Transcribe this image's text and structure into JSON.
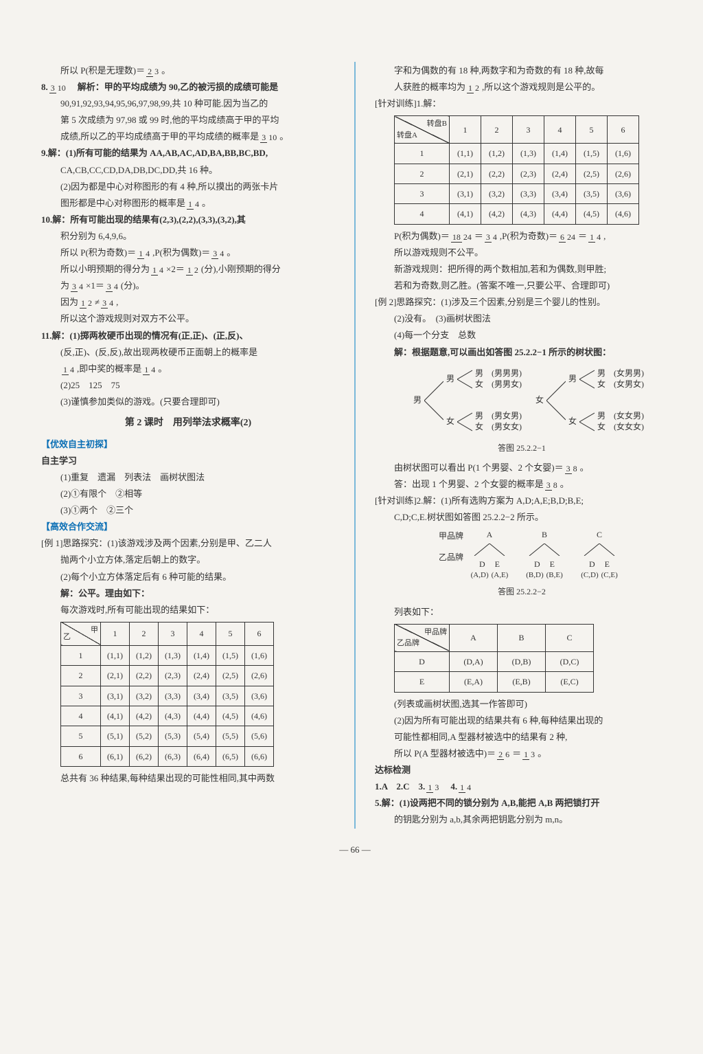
{
  "left": {
    "p1_pre": "所以 P(积是无理数)＝",
    "p1_num": "2",
    "p1_den": "3",
    "p1_post": "。",
    "q8_label": "8.",
    "q8_num": "3",
    "q8_den": "10",
    "q8_a": "解析：甲的平均成绩为 90,乙的被污损的成绩可能是",
    "q8_b": "90,91,92,93,94,95,96,97,98,99,共 10 种可能.因为当乙的",
    "q8_c": "第 5 次成绩为 97,98 或 99 时,他的平均成绩高于甲的平均",
    "q8_d_pre": "成绩,所以乙的平均成绩高于甲的平均成绩的概率是",
    "q8_d_num": "3",
    "q8_d_den": "10",
    "q8_d_post": "。",
    "q9_a": "9.解：(1)所有可能的结果为 AA,AB,AC,AD,BA,BB,BC,BD,",
    "q9_b": "CA,CB,CC,CD,DA,DB,DC,DD,共 16 种。",
    "q9_c": "(2)因为都是中心对称图形的有 4 种,所以摸出的两张卡片",
    "q9_d_pre": "图形都是中心对称图形的概率是",
    "q9_d_num": "1",
    "q9_d_den": "4",
    "q9_d_post": "。",
    "q10_a": "10.解：所有可能出现的结果有(2,3),(2,2),(3,3),(3,2),其",
    "q10_b": "积分别为 6,4,9,6。",
    "q10_c_pre": "所以 P(积为奇数)＝",
    "q10_c_n1": "1",
    "q10_c_d1": "4",
    "q10_c_mid": ",P(积为偶数)＝",
    "q10_c_n2": "3",
    "q10_c_d2": "4",
    "q10_c_post": "。",
    "q10_d_pre": "所以小明预期的得分为",
    "q10_d_n1": "1",
    "q10_d_d1": "4",
    "q10_d_mid1": "×2＝",
    "q10_d_n2": "1",
    "q10_d_d2": "2",
    "q10_d_mid2": "(分),小刚预期的得分",
    "q10_e_pre": "为",
    "q10_e_n1": "3",
    "q10_e_d1": "4",
    "q10_e_mid": "×1＝",
    "q10_e_n2": "3",
    "q10_e_d2": "4",
    "q10_e_post": "(分)。",
    "q10_f_pre": "因为",
    "q10_f_n1": "1",
    "q10_f_d1": "2",
    "q10_f_mid": "≠",
    "q10_f_n2": "3",
    "q10_f_d2": "4",
    "q10_f_post": ",",
    "q10_g": "所以这个游戏规则对双方不公平。",
    "q11_a": "11.解：(1)掷两枚硬币出现的情况有(正,正)、(正,反)、",
    "q11_b": "(反,正)、(反,反),故出现两枚硬币正面朝上的概率是",
    "q11_c_n1": "1",
    "q11_c_d1": "4",
    "q11_c_mid": ",即中奖的概率是",
    "q11_c_n2": "1",
    "q11_c_d2": "4",
    "q11_c_post": "。",
    "q11_d": "(2)25　125　75",
    "q11_e": "(3)谨慎参加类似的游戏。(只要合理即可)",
    "sec2_title": "第 2 课时　用列举法求概率(2)",
    "blue1": "【优效自主初探】",
    "zz": "自主学习",
    "zz1": "(1)重复　遗漏　列表法　画树状图法",
    "zz2": "(2)①有限个　②相等",
    "zz3": "(3)①两个　②三个",
    "blue2": "【高效合作交流】",
    "ex1_a": "[例 1]思路探究：(1)该游戏涉及两个因素,分别是甲、乙二人",
    "ex1_b": "抛两个小立方体,落定后朝上的数字。",
    "ex1_c": "(2)每个小立方体落定后有 6 种可能的结果。",
    "ex1_d": "解：公平。理由如下：",
    "ex1_e": "每次游戏时,所有可能出现的结果如下：",
    "tbl1": {
      "diag_tl": "乙",
      "diag_br": "甲",
      "cols": [
        "1",
        "2",
        "3",
        "4",
        "5",
        "6"
      ],
      "rows": [
        "1",
        "2",
        "3",
        "4",
        "5",
        "6"
      ],
      "cells": [
        [
          "(1,1)",
          "(1,2)",
          "(1,3)",
          "(1,4)",
          "(1,5)",
          "(1,6)"
        ],
        [
          "(2,1)",
          "(2,2)",
          "(2,3)",
          "(2,4)",
          "(2,5)",
          "(2,6)"
        ],
        [
          "(3,1)",
          "(3,2)",
          "(3,3)",
          "(3,4)",
          "(3,5)",
          "(3,6)"
        ],
        [
          "(4,1)",
          "(4,2)",
          "(4,3)",
          "(4,4)",
          "(4,5)",
          "(4,6)"
        ],
        [
          "(5,1)",
          "(5,2)",
          "(5,3)",
          "(5,4)",
          "(5,5)",
          "(5,6)"
        ],
        [
          "(6,1)",
          "(6,2)",
          "(6,3)",
          "(6,4)",
          "(6,5)",
          "(6,6)"
        ]
      ]
    },
    "ex1_f": "总共有 36 种结果,每种结果出现的可能性相同,其中两数"
  },
  "right": {
    "p1": "字和为偶数的有 18 种,两数字和为奇数的有 18 种,故每",
    "p2_pre": "人获胜的概率均为",
    "p2_n": "1",
    "p2_d": "2",
    "p2_post": ",所以这个游戏规则是公平的。",
    "zd1_label": "[针对训练]1.解：",
    "tbl2": {
      "diag_tl": "转盘A",
      "diag_br": "转盘B",
      "cols": [
        "1",
        "2",
        "3",
        "4",
        "5",
        "6"
      ],
      "rows": [
        "1",
        "2",
        "3",
        "4"
      ],
      "cells": [
        [
          "(1,1)",
          "(1,2)",
          "(1,3)",
          "(1,4)",
          "(1,5)",
          "(1,6)"
        ],
        [
          "(2,1)",
          "(2,2)",
          "(2,3)",
          "(2,4)",
          "(2,5)",
          "(2,6)"
        ],
        [
          "(3,1)",
          "(3,2)",
          "(3,3)",
          "(3,4)",
          "(3,5)",
          "(3,6)"
        ],
        [
          "(4,1)",
          "(4,2)",
          "(4,3)",
          "(4,4)",
          "(4,5)",
          "(4,6)"
        ]
      ]
    },
    "p3_pre": "P(积为偶数)＝",
    "p3_n1": "18",
    "p3_d1": "24",
    "p3_eq1": "＝",
    "p3_n2": "3",
    "p3_d2": "4",
    "p3_mid": ",P(积为奇数)＝",
    "p3_n3": "6",
    "p3_d3": "24",
    "p3_eq2": "＝",
    "p3_n4": "1",
    "p3_d4": "4",
    "p3_post": ",",
    "p4": "所以游戏规则不公平。",
    "p5": "新游戏规则：把所得的两个数相加,若和为偶数,则甲胜;",
    "p6": "若和为奇数,则乙胜。(答案不唯一,只要公平、合理即可)",
    "ex2_a": "[例 2]思路探究：(1)涉及三个因素,分别是三个婴儿的性别。",
    "ex2_b": "(2)没有。　(3)画树状图法",
    "ex2_c": "(4)每一个分支　总数",
    "ex2_d": "解：根据题意,可以画出如答图 25.2.2−1 所示的树状图：",
    "tree1": {
      "roots": [
        "男",
        "女"
      ],
      "level2": [
        "男",
        "女",
        "男",
        "女"
      ],
      "leaves_l": [
        [
          "男",
          "(男男男)"
        ],
        [
          "女",
          "(男男女)"
        ],
        [
          "男",
          "(男女男)"
        ],
        [
          "女",
          "(男女女)"
        ]
      ],
      "leaves_r": [
        [
          "男",
          "(女男男)"
        ],
        [
          "女",
          "(女男女)"
        ],
        [
          "男",
          "(女女男)"
        ],
        [
          "女",
          "(女女女)"
        ]
      ]
    },
    "fig1": "答图 25.2.2−1",
    "p7_pre": "由树状图可以看出 P(1 个男婴、2 个女婴)＝",
    "p7_n": "3",
    "p7_d": "8",
    "p7_post": "。",
    "p8_pre": "答：出现 1 个男婴、2 个女婴的概率是",
    "p8_n": "3",
    "p8_d": "8",
    "p8_post": "。",
    "zd2_a": "[针对训练]2.解：(1)所有选购方案为 A,D;A,E;B,D;B,E;",
    "zd2_b": "C,D;C,E.树状图如答图 25.2.2−2 所示。",
    "tree2": {
      "row1_label": "甲品牌",
      "row1": [
        "A",
        "B",
        "C"
      ],
      "row2_label": "乙品牌",
      "row2": [
        "D",
        "E",
        "D",
        "E",
        "D",
        "E"
      ],
      "row3": [
        "(A,D)",
        "(A,E)",
        "(B,D)",
        "(B,E)",
        "(C,D)",
        "(C,E)"
      ]
    },
    "fig2": "答图 25.2.2−2",
    "p9": "列表如下：",
    "tbl3": {
      "diag_tl": "乙品牌",
      "diag_br": "甲品牌",
      "cols": [
        "A",
        "B",
        "C"
      ],
      "rows": [
        "D",
        "E"
      ],
      "cells": [
        [
          "(D,A)",
          "(D,B)",
          "(D,C)"
        ],
        [
          "(E,A)",
          "(E,B)",
          "(E,C)"
        ]
      ]
    },
    "p10": "(列表或画树状图,选其一作答即可)",
    "p11": "(2)因为所有可能出现的结果共有 6 种,每种结果出现的",
    "p12": "可能性都相同,A 型器材被选中的结果有 2 种,",
    "p13_pre": "所以 P(A 型器材被选中)＝",
    "p13_n1": "2",
    "p13_d1": "6",
    "p13_eq": "＝",
    "p13_n2": "1",
    "p13_d2": "3",
    "p13_post": "。",
    "db_title": "达标检测",
    "db1_pre": "1.A　2.C　3.",
    "db1_n1": "1",
    "db1_d1": "3",
    "db1_mid": "　4.",
    "db1_n2": "1",
    "db1_d2": "4",
    "db5_a": "5.解：(1)设两把不同的锁分别为 A,B,能把 A,B 两把锁打开",
    "db5_b": "的钥匙分别为 a,b,其余两把钥匙分别为 m,n。"
  },
  "page_num": "— 66 —"
}
